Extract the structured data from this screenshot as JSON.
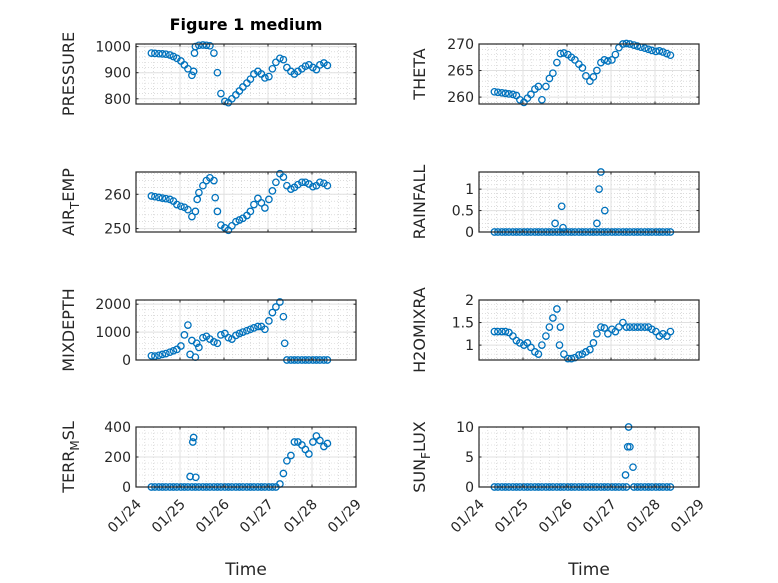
{
  "figure": {
    "title": "Figure 1 medium",
    "marker_color": "#0072BD"
  },
  "chart_data": {
    "type": "scatter",
    "x_unit": "days since 01/24",
    "xlim": [
      0,
      5
    ],
    "xticks": [
      0,
      1,
      2,
      3,
      4,
      5
    ],
    "xtick_labels": [
      "01/24",
      "01/25",
      "01/26",
      "01/27",
      "01/28",
      "01/29"
    ],
    "xlabel": "Time",
    "grid": "on (major + minor)",
    "x": [
      0.35,
      0.43,
      0.52,
      0.6,
      0.68,
      0.77,
      0.85,
      0.93,
      1.02,
      1.1,
      1.18,
      1.27,
      1.35,
      1.43,
      1.52,
      1.6,
      1.68,
      1.77,
      1.85,
      1.93,
      2.02,
      2.1,
      2.18,
      2.27,
      2.35,
      2.43,
      2.52,
      2.6,
      2.68,
      2.77,
      2.85,
      2.93,
      3.02,
      3.1,
      3.18,
      3.27,
      3.35,
      3.43,
      3.52,
      3.6,
      3.68,
      3.77,
      3.85,
      3.93,
      4.02,
      4.1,
      4.18,
      4.27,
      4.35
    ],
    "subplots": [
      {
        "id": "pressure",
        "col": 0,
        "row": 0,
        "ylabel": "PRESSURE",
        "ylim": [
          780,
          1010
        ],
        "yticks": [
          800,
          900,
          1000
        ],
        "values": [
          975,
          974,
          973,
          972,
          971,
          968,
          962,
          955,
          945,
          930,
          915,
          890,
          1000,
          1005,
          1006,
          1005,
          1003,
          975,
          900,
          820,
          790,
          785,
          800,
          815,
          830,
          845,
          860,
          875,
          895,
          905,
          895,
          880,
          885,
          915,
          940,
          955,
          950,
          920,
          905,
          895,
          905,
          915,
          925,
          930,
          920,
          912,
          930,
          937,
          928
        ],
        "extra": [
          [
            1.31,
            905
          ],
          [
            1.33,
            975
          ]
        ]
      },
      {
        "id": "theta",
        "col": 1,
        "row": 0,
        "ylabel": "THETA",
        "ylim": [
          258.7,
          270
        ],
        "yticks": [
          260,
          265,
          270
        ],
        "values": [
          261,
          260.9,
          260.8,
          260.7,
          260.6,
          260.5,
          260.3,
          259.5,
          259,
          259.8,
          260.5,
          261.5,
          262,
          259.5,
          262,
          263.5,
          264.5,
          266.5,
          268.2,
          268.3,
          268,
          267.5,
          267,
          266.2,
          265.5,
          264,
          263,
          263.8,
          265,
          266.5,
          267,
          266.8,
          267,
          268,
          269.3,
          270,
          270.1,
          270,
          269.8,
          269.6,
          269.4,
          269.2,
          269,
          268.8,
          268.6,
          268.7,
          268.5,
          268.2,
          267.9
        ],
        "extra": []
      },
      {
        "id": "air_temp",
        "col": 0,
        "row": 1,
        "ylabel": "AIR_TEMP",
        "ylim": [
          249,
          266.5
        ],
        "yticks": [
          250,
          260
        ],
        "values": [
          259.5,
          259.3,
          259.1,
          258.9,
          258.7,
          258.5,
          258,
          257,
          256.5,
          256.2,
          255.5,
          253.5,
          255,
          260.5,
          262.5,
          264,
          264.8,
          264,
          255,
          251,
          250.2,
          249.5,
          250.8,
          252,
          252.5,
          253,
          253.8,
          255,
          257,
          258.8,
          257.5,
          256,
          258.5,
          261,
          263.5,
          266,
          265,
          262.5,
          261.5,
          262,
          262.8,
          263.5,
          263.5,
          263,
          262.2,
          262.5,
          263.5,
          263.2,
          262.5
        ],
        "extra": [
          [
            1.8,
            259
          ],
          [
            1.39,
            258.5
          ]
        ]
      },
      {
        "id": "rainfall",
        "col": 1,
        "row": 1,
        "ylabel": "RAINFALL",
        "ylim": [
          0,
          1.4
        ],
        "yticks": [
          0,
          0.5,
          1
        ],
        "ytick_labels": [
          "0",
          "0.5",
          "1"
        ],
        "values": [
          0,
          0,
          0,
          0,
          0,
          0,
          0,
          0,
          0,
          0,
          0,
          0,
          0,
          0,
          0,
          0,
          0,
          0,
          0,
          0,
          0,
          0,
          0,
          0,
          0,
          0,
          0,
          0,
          0,
          0,
          0,
          0,
          0,
          0,
          0,
          0,
          0,
          0,
          0,
          0,
          0,
          0,
          0,
          0,
          0,
          0,
          0,
          0,
          0
        ],
        "extra": [
          [
            1.73,
            0.2
          ],
          [
            1.88,
            0.6
          ],
          [
            1.91,
            0.1
          ],
          [
            2.68,
            0.2
          ],
          [
            2.73,
            1.0
          ],
          [
            2.77,
            1.4
          ],
          [
            2.86,
            0.5
          ]
        ]
      },
      {
        "id": "mixdepth",
        "col": 0,
        "row": 2,
        "ylabel": "MIXDEPTH",
        "ylim": [
          0,
          2150
        ],
        "yticks": [
          0,
          1000,
          2000
        ],
        "values": [
          150,
          140,
          170,
          200,
          230,
          280,
          330,
          380,
          500,
          900,
          1250,
          700,
          100,
          450,
          800,
          850,
          750,
          650,
          600,
          900,
          950,
          800,
          750,
          880,
          950,
          1000,
          1050,
          1100,
          1150,
          1200,
          1200,
          1100,
          1400,
          1700,
          1900,
          2080,
          1550,
          0,
          0,
          0,
          0,
          0,
          0,
          0,
          0,
          0,
          0,
          0,
          0
        ],
        "extra": [
          [
            1.23,
            200
          ],
          [
            1.38,
            600
          ],
          [
            3.38,
            600
          ]
        ]
      },
      {
        "id": "h2omixra",
        "col": 1,
        "row": 2,
        "ylabel": "H2OMIXRA",
        "ylim": [
          0.67,
          2
        ],
        "yticks": [
          1,
          1.5,
          2
        ],
        "ytick_labels": [
          "1",
          "1.5",
          "2"
        ],
        "values": [
          1.3,
          1.3,
          1.3,
          1.3,
          1.28,
          1.2,
          1.1,
          1.05,
          1.0,
          1.05,
          0.95,
          0.85,
          0.8,
          1.0,
          1.2,
          1.4,
          1.6,
          1.8,
          1.4,
          0.8,
          0.7,
          0.7,
          0.72,
          0.78,
          0.8,
          0.85,
          0.9,
          1.05,
          1.25,
          1.4,
          1.38,
          1.25,
          1.35,
          1.3,
          1.4,
          1.5,
          1.4,
          1.4,
          1.4,
          1.4,
          1.4,
          1.4,
          1.4,
          1.35,
          1.3,
          1.2,
          1.25,
          1.2,
          1.3
        ],
        "extra": [
          [
            1.83,
            1.0
          ]
        ]
      },
      {
        "id": "terr_msl",
        "col": 0,
        "row": 3,
        "ylabel": "TERR_MSL",
        "ylim": [
          0,
          400
        ],
        "yticks": [
          0,
          200,
          400
        ],
        "values": [
          0,
          0,
          0,
          0,
          0,
          0,
          0,
          0,
          0,
          0,
          0,
          0,
          0,
          0,
          0,
          0,
          0,
          0,
          0,
          0,
          0,
          0,
          0,
          0,
          0,
          0,
          0,
          0,
          0,
          0,
          0,
          0,
          0,
          0,
          0,
          20,
          90,
          175,
          210,
          300,
          300,
          280,
          250,
          220,
          300,
          340,
          310,
          270,
          290
        ],
        "extra": [
          [
            1.23,
            70
          ],
          [
            1.29,
            300
          ],
          [
            1.31,
            330
          ],
          [
            1.36,
            65
          ]
        ]
      },
      {
        "id": "sun_flux",
        "col": 1,
        "row": 3,
        "ylabel": "SUN_FLUX",
        "ylim": [
          0,
          10
        ],
        "yticks": [
          0,
          5,
          10
        ],
        "values": [
          0,
          0,
          0,
          0,
          0,
          0,
          0,
          0,
          0,
          0,
          0,
          0,
          0,
          0,
          0,
          0,
          0,
          0,
          0,
          0,
          0,
          0,
          0,
          0,
          0,
          0,
          0,
          0,
          0,
          0,
          0,
          0,
          0,
          0,
          0,
          0,
          0,
          null,
          0,
          0,
          0,
          0,
          0,
          0,
          0,
          0,
          0,
          0,
          0
        ],
        "extra": [
          [
            3.33,
            2
          ],
          [
            3.38,
            6.7
          ],
          [
            3.43,
            6.7
          ],
          [
            3.4,
            10
          ],
          [
            3.5,
            3.3
          ]
        ]
      }
    ]
  }
}
